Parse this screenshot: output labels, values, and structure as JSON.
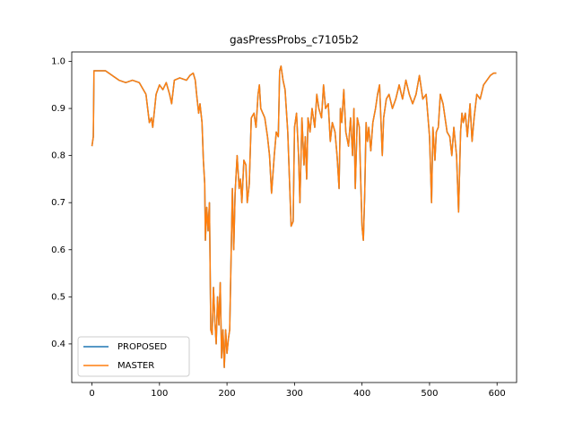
{
  "chart_data": {
    "type": "line",
    "title": "gasPressProbs_c7105b2",
    "x": [
      0,
      2,
      3,
      10,
      20,
      30,
      40,
      50,
      60,
      70,
      80,
      85,
      88,
      90,
      95,
      100,
      105,
      110,
      115,
      118,
      122,
      130,
      140,
      145,
      150,
      153,
      155,
      158,
      160,
      163,
      165,
      167,
      168,
      170,
      172,
      174,
      176,
      178,
      180,
      182,
      184,
      186,
      188,
      190,
      192,
      194,
      196,
      198,
      200,
      202,
      204,
      206,
      208,
      210,
      212,
      215,
      218,
      220,
      222,
      225,
      228,
      230,
      233,
      236,
      240,
      243,
      246,
      248,
      250,
      253,
      256,
      260,
      263,
      266,
      270,
      273,
      276,
      278,
      280,
      283,
      286,
      290,
      293,
      295,
      298,
      300,
      303,
      306,
      308,
      311,
      314,
      316,
      318,
      320,
      323,
      326,
      330,
      333,
      336,
      340,
      343,
      346,
      350,
      353,
      356,
      360,
      363,
      366,
      368,
      370,
      373,
      376,
      380,
      383,
      386,
      388,
      390,
      393,
      396,
      398,
      400,
      402,
      404,
      406,
      408,
      410,
      413,
      416,
      420,
      423,
      426,
      430,
      432,
      436,
      440,
      445,
      450,
      455,
      460,
      465,
      470,
      475,
      480,
      485,
      488,
      490,
      495,
      500,
      503,
      505,
      508,
      510,
      513,
      516,
      520,
      523,
      526,
      530,
      533,
      536,
      540,
      543,
      546,
      548,
      550,
      553,
      556,
      560,
      563,
      566,
      570,
      575,
      580,
      585,
      590,
      595,
      599
    ],
    "series": [
      {
        "name": "PROPOSED",
        "color": "#1f77b4",
        "values": [
          0.82,
          0.84,
          0.98,
          0.98,
          0.98,
          0.97,
          0.96,
          0.955,
          0.96,
          0.955,
          0.93,
          0.87,
          0.88,
          0.86,
          0.93,
          0.95,
          0.94,
          0.955,
          0.93,
          0.91,
          0.96,
          0.965,
          0.96,
          0.97,
          0.975,
          0.96,
          0.93,
          0.89,
          0.91,
          0.87,
          0.79,
          0.74,
          0.62,
          0.69,
          0.64,
          0.7,
          0.43,
          0.42,
          0.52,
          0.45,
          0.4,
          0.5,
          0.44,
          0.53,
          0.37,
          0.43,
          0.35,
          0.43,
          0.38,
          0.41,
          0.43,
          0.58,
          0.73,
          0.6,
          0.72,
          0.8,
          0.73,
          0.75,
          0.7,
          0.79,
          0.78,
          0.7,
          0.74,
          0.88,
          0.89,
          0.86,
          0.93,
          0.95,
          0.9,
          0.89,
          0.88,
          0.84,
          0.8,
          0.72,
          0.8,
          0.85,
          0.84,
          0.98,
          0.99,
          0.96,
          0.94,
          0.85,
          0.73,
          0.65,
          0.66,
          0.86,
          0.89,
          0.8,
          0.7,
          0.88,
          0.78,
          0.84,
          0.75,
          0.88,
          0.85,
          0.9,
          0.86,
          0.93,
          0.9,
          0.88,
          0.95,
          0.9,
          0.91,
          0.83,
          0.87,
          0.85,
          0.8,
          0.73,
          0.9,
          0.87,
          0.94,
          0.85,
          0.82,
          0.88,
          0.8,
          0.9,
          0.73,
          0.88,
          0.86,
          0.75,
          0.65,
          0.62,
          0.72,
          0.87,
          0.83,
          0.86,
          0.81,
          0.87,
          0.9,
          0.93,
          0.95,
          0.8,
          0.88,
          0.92,
          0.93,
          0.9,
          0.92,
          0.95,
          0.92,
          0.96,
          0.93,
          0.91,
          0.93,
          0.97,
          0.94,
          0.92,
          0.93,
          0.84,
          0.7,
          0.86,
          0.79,
          0.85,
          0.86,
          0.93,
          0.91,
          0.88,
          0.85,
          0.84,
          0.8,
          0.86,
          0.8,
          0.68,
          0.85,
          0.89,
          0.87,
          0.89,
          0.84,
          0.91,
          0.83,
          0.88,
          0.93,
          0.92,
          0.95,
          0.96,
          0.97,
          0.975,
          0.975
        ]
      },
      {
        "name": "MASTER",
        "color": "#ff7f0e",
        "values": [
          0.82,
          0.84,
          0.98,
          0.98,
          0.98,
          0.97,
          0.96,
          0.955,
          0.96,
          0.955,
          0.93,
          0.87,
          0.88,
          0.86,
          0.93,
          0.95,
          0.94,
          0.955,
          0.93,
          0.91,
          0.96,
          0.965,
          0.96,
          0.97,
          0.975,
          0.96,
          0.93,
          0.89,
          0.91,
          0.87,
          0.79,
          0.74,
          0.62,
          0.69,
          0.64,
          0.7,
          0.43,
          0.42,
          0.52,
          0.45,
          0.4,
          0.5,
          0.44,
          0.53,
          0.37,
          0.43,
          0.35,
          0.43,
          0.38,
          0.41,
          0.43,
          0.58,
          0.73,
          0.6,
          0.72,
          0.8,
          0.73,
          0.75,
          0.7,
          0.79,
          0.78,
          0.7,
          0.74,
          0.88,
          0.89,
          0.86,
          0.93,
          0.95,
          0.9,
          0.89,
          0.88,
          0.84,
          0.8,
          0.72,
          0.8,
          0.85,
          0.84,
          0.98,
          0.99,
          0.96,
          0.94,
          0.85,
          0.73,
          0.65,
          0.66,
          0.86,
          0.89,
          0.8,
          0.7,
          0.88,
          0.78,
          0.84,
          0.75,
          0.88,
          0.85,
          0.9,
          0.86,
          0.93,
          0.9,
          0.88,
          0.95,
          0.9,
          0.91,
          0.83,
          0.87,
          0.85,
          0.8,
          0.73,
          0.9,
          0.87,
          0.94,
          0.85,
          0.82,
          0.88,
          0.8,
          0.9,
          0.73,
          0.88,
          0.86,
          0.75,
          0.65,
          0.62,
          0.72,
          0.87,
          0.83,
          0.86,
          0.81,
          0.87,
          0.9,
          0.93,
          0.95,
          0.8,
          0.88,
          0.92,
          0.93,
          0.9,
          0.92,
          0.95,
          0.92,
          0.96,
          0.93,
          0.91,
          0.93,
          0.97,
          0.94,
          0.92,
          0.93,
          0.84,
          0.7,
          0.86,
          0.79,
          0.85,
          0.86,
          0.93,
          0.91,
          0.88,
          0.85,
          0.84,
          0.8,
          0.86,
          0.8,
          0.68,
          0.85,
          0.89,
          0.87,
          0.89,
          0.84,
          0.91,
          0.83,
          0.88,
          0.93,
          0.92,
          0.95,
          0.96,
          0.97,
          0.975,
          0.975
        ]
      }
    ],
    "xlim": [
      -29.95,
      628.95
    ],
    "xticks": [
      0,
      100,
      200,
      300,
      400,
      500,
      600
    ],
    "ylim": [
      0.318,
      1.02
    ],
    "yticks": [
      0.4,
      0.5,
      0.6,
      0.7,
      0.8,
      0.9,
      {
        "value": 1,
        "label": "1.0"
      }
    ],
    "legend": "lower left"
  }
}
